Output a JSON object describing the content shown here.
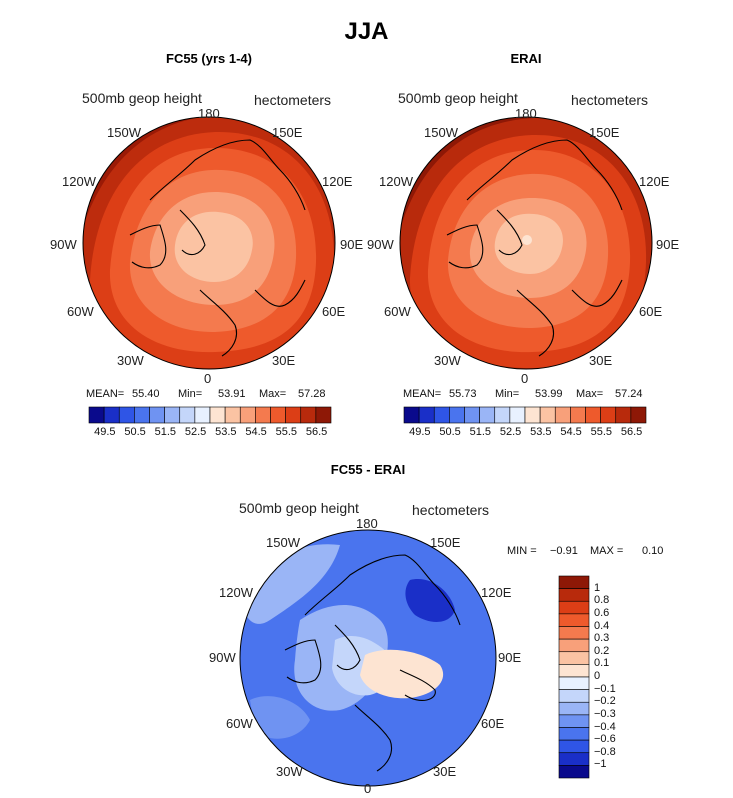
{
  "title": "JJA",
  "panels": [
    {
      "id": "fc55",
      "title": "FC55 (yrs 1-4)",
      "variable": "500mb geop height",
      "units": "hectometers",
      "stats": {
        "mean_label": "MEAN=",
        "mean": "55.40",
        "min_label": "Min=",
        "min": "53.91",
        "max_label": "Max=",
        "max": "57.28"
      },
      "longitudes": [
        "180",
        "150E",
        "120E",
        "90E",
        "60E",
        "30E",
        "0",
        "30W",
        "60W",
        "90W",
        "120W",
        "150W"
      ]
    },
    {
      "id": "erai",
      "title": "ERAI",
      "variable": "500mb geop height",
      "units": "hectometers",
      "stats": {
        "mean_label": "MEAN=",
        "mean": "55.73",
        "min_label": "Min=",
        "min": "53.99",
        "max_label": "Max=",
        "max": "57.24"
      },
      "longitudes": [
        "180",
        "150E",
        "120E",
        "90E",
        "60E",
        "30E",
        "0",
        "30W",
        "60W",
        "90W",
        "120W",
        "150W"
      ]
    },
    {
      "id": "diff",
      "title": "FC55 - ERAI",
      "variable": "500mb geop height",
      "units": "hectometers",
      "stats": {
        "min_label": "MIN =",
        "min": "−0.91",
        "max_label": "MAX =",
        "max": "0.10"
      },
      "longitudes": [
        "180",
        "150E",
        "120E",
        "90E",
        "60E",
        "30E",
        "0",
        "30W",
        "60W",
        "90W",
        "120W",
        "150W"
      ]
    }
  ],
  "colorbar_abs": {
    "labels": [
      "49.5",
      "50.5",
      "51.5",
      "52.5",
      "53.5",
      "54.5",
      "55.5",
      "56.5"
    ],
    "colors": [
      "#0a0a8c",
      "#1a2fc8",
      "#2f55e6",
      "#4a74ee",
      "#6f93f2",
      "#9ab5f6",
      "#c4d6fa",
      "#e8f1ff",
      "#fde4d2",
      "#fbc3a3",
      "#f8a07a",
      "#f47a4e",
      "#ee5a2c",
      "#dc3e16",
      "#b82a0c",
      "#8e1806"
    ]
  },
  "colorbar_diff": {
    "labels": [
      "1",
      "0.8",
      "0.6",
      "0.4",
      "0.3",
      "0.2",
      "0.1",
      "0",
      "−0.1",
      "−0.2",
      "−0.3",
      "−0.4",
      "−0.6",
      "−0.8",
      "−1"
    ],
    "colors": [
      "#8e1806",
      "#b82a0c",
      "#dc3e16",
      "#ee5a2c",
      "#f47a4e",
      "#f8a07a",
      "#fbc3a3",
      "#fde4d2",
      "#e8f1ff",
      "#c4d6fa",
      "#9ab5f6",
      "#6f93f2",
      "#4a74ee",
      "#2f55e6",
      "#1a2fc8",
      "#0a0a8c"
    ]
  }
}
